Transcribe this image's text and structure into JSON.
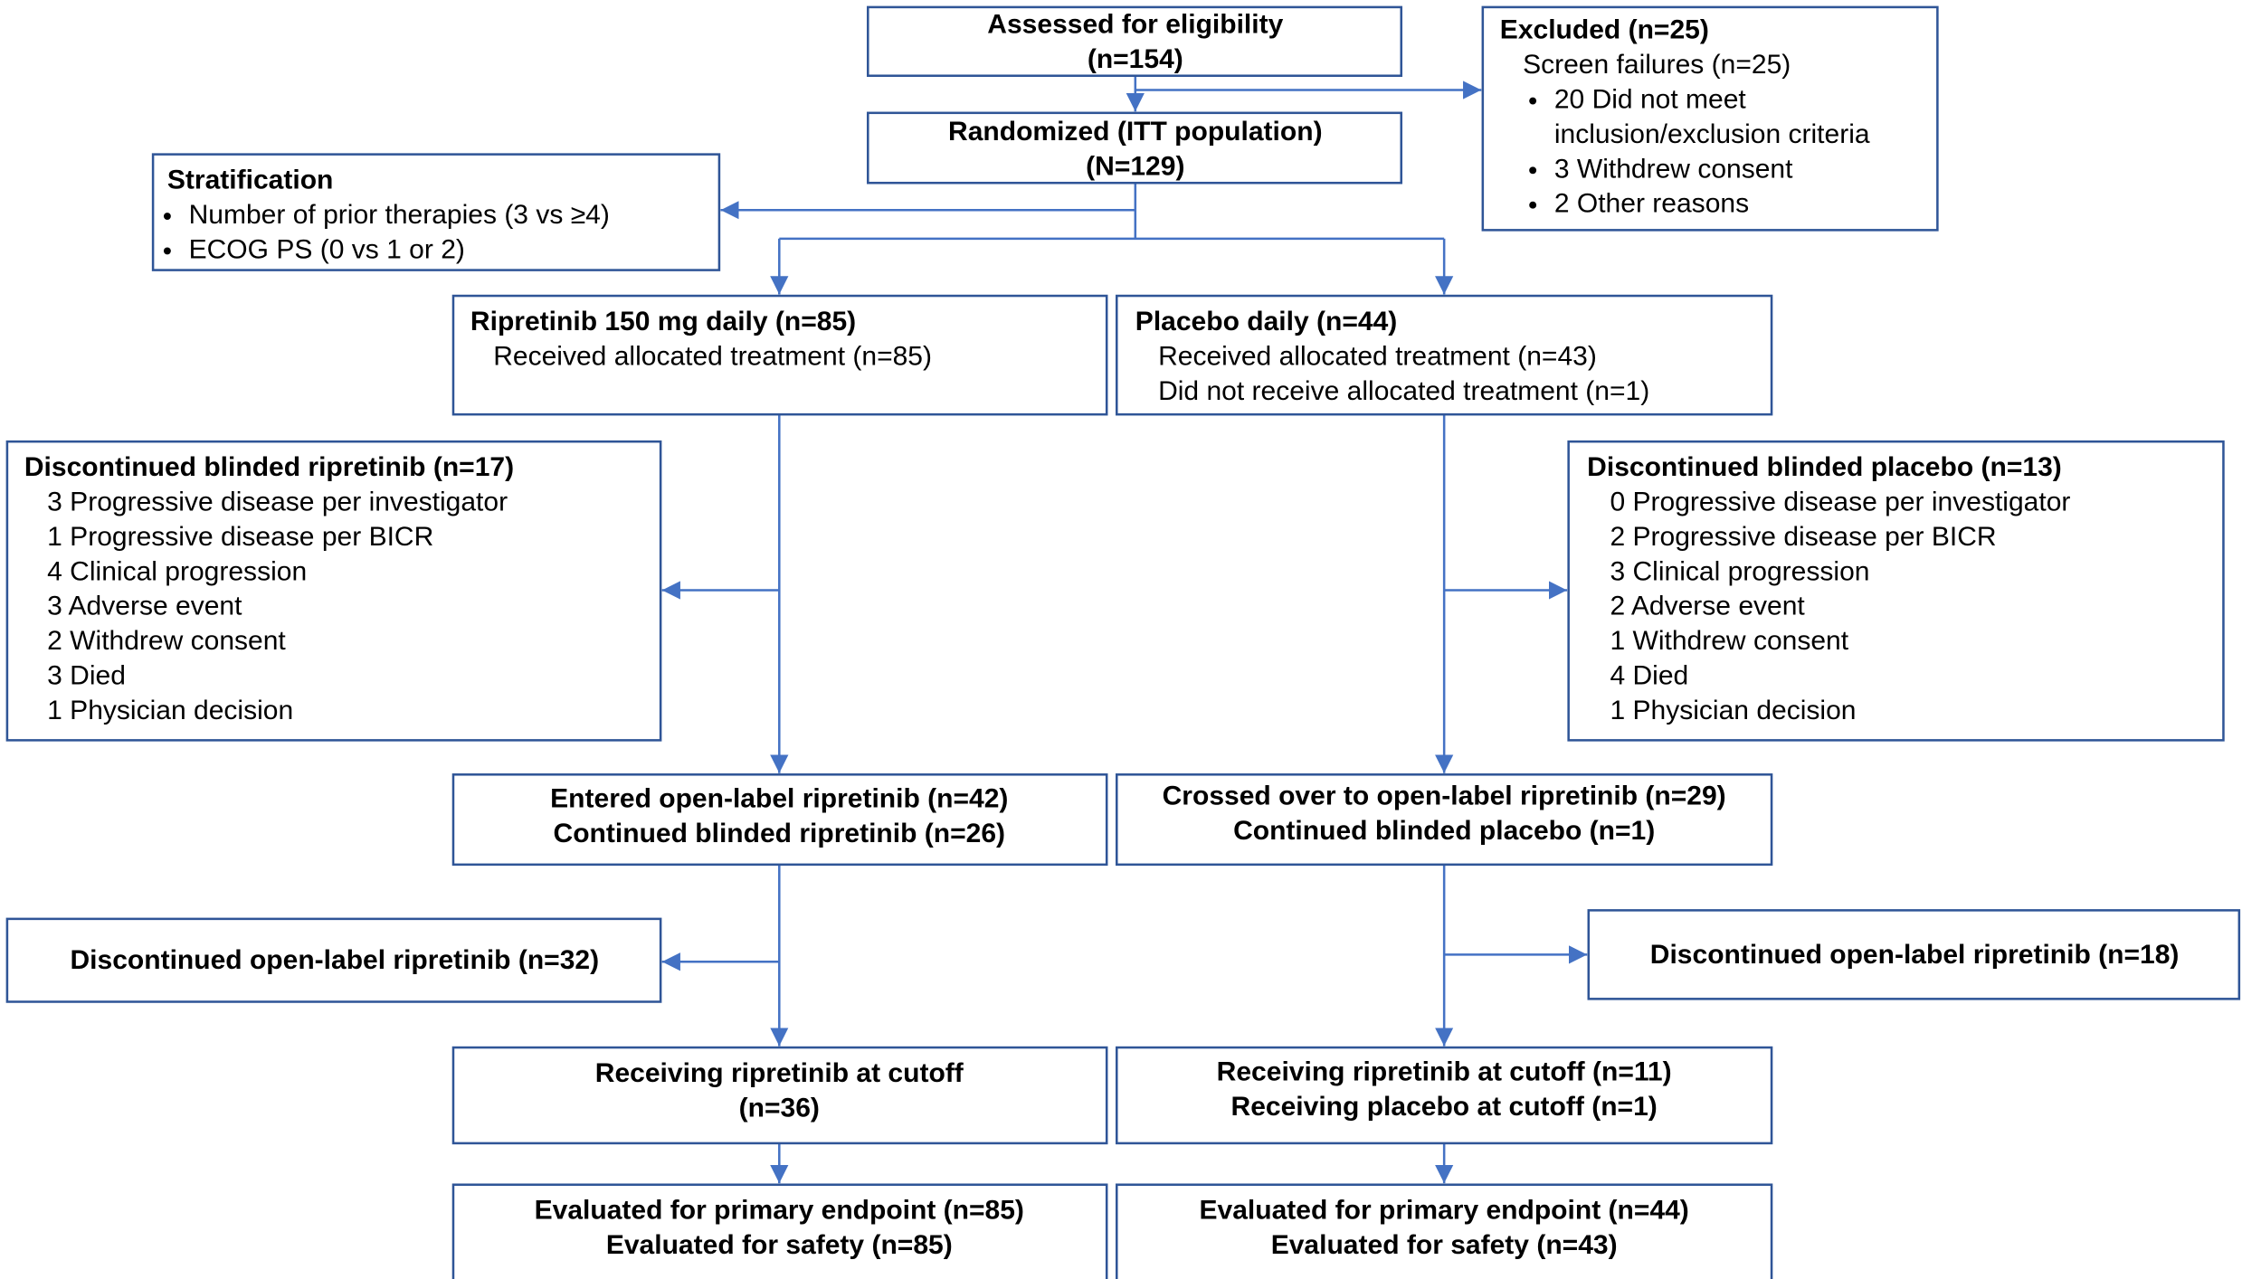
{
  "nodes": {
    "assessed": {
      "heading": [
        "Assessed for eligibility",
        "(n=154)"
      ]
    },
    "excluded": {
      "heading": [
        "Excluded (n=25)"
      ],
      "details": [
        "Screen failures (n=25)"
      ],
      "items": [
        "20 Did not meet",
        "inclusion/exclusion criteria",
        "3 Withdrew consent",
        "2 Other reasons"
      ]
    },
    "randomized": {
      "heading": [
        "Randomized (ITT population)",
        "(N=129)"
      ]
    },
    "stratification": {
      "heading": [
        "Stratification"
      ],
      "items": [
        "Number of prior therapies (3 vs ≥4)",
        "ECOG PS (0 vs 1 or 2)"
      ]
    },
    "ripretinib_arm": {
      "heading": [
        "Ripretinib 150 mg daily (n=85)"
      ],
      "details": [
        "Received allocated treatment (n=85)"
      ]
    },
    "placebo_arm": {
      "heading": [
        "Placebo daily (n=44)"
      ],
      "details": [
        "Received allocated treatment (n=43)",
        "Did not receive allocated treatment (n=1)"
      ]
    },
    "discontinued_blinded_ripretinib": {
      "heading": [
        "Discontinued blinded ripretinib (n=17)"
      ],
      "details": [
        "3 Progressive disease per investigator",
        "1 Progressive disease per BICR",
        "4 Clinical progression",
        "3 Adverse event",
        "2 Withdrew consent",
        "3 Died",
        "1 Physician decision"
      ]
    },
    "discontinued_blinded_placebo": {
      "heading": [
        "Discontinued blinded placebo (n=13)"
      ],
      "details": [
        "0 Progressive disease per investigator",
        "2 Progressive disease per BICR",
        "3 Clinical progression",
        "2 Adverse event",
        "1 Withdrew consent",
        "4 Died",
        "1 Physician decision"
      ]
    },
    "open_label_ripretinib": {
      "heading": [
        "Entered open-label ripretinib (n=42)",
        "Continued blinded ripretinib (n=26)"
      ]
    },
    "crossed_over": {
      "heading": [
        "Crossed over to open-label ripretinib (n=29)",
        "Continued blinded placebo (n=1)"
      ]
    },
    "discontinued_open_label_left": {
      "heading": [
        "Discontinued open-label ripretinib (n=32)"
      ]
    },
    "discontinued_open_label_right": {
      "heading": [
        "Discontinued open-label ripretinib (n=18)"
      ]
    },
    "receiving_left": {
      "heading": [
        "Receiving ripretinib at cutoff",
        "(n=36)"
      ]
    },
    "receiving_right": {
      "heading": [
        "Receiving ripretinib at cutoff (n=11)",
        "Receiving placebo at cutoff (n=1)"
      ]
    },
    "evaluated_left": {
      "heading": [
        "Evaluated for primary endpoint (n=85)",
        "Evaluated for safety (n=85)"
      ]
    },
    "evaluated_right": {
      "heading": [
        "Evaluated for primary endpoint (n=44)",
        "Evaluated for safety (n=43)"
      ]
    }
  }
}
